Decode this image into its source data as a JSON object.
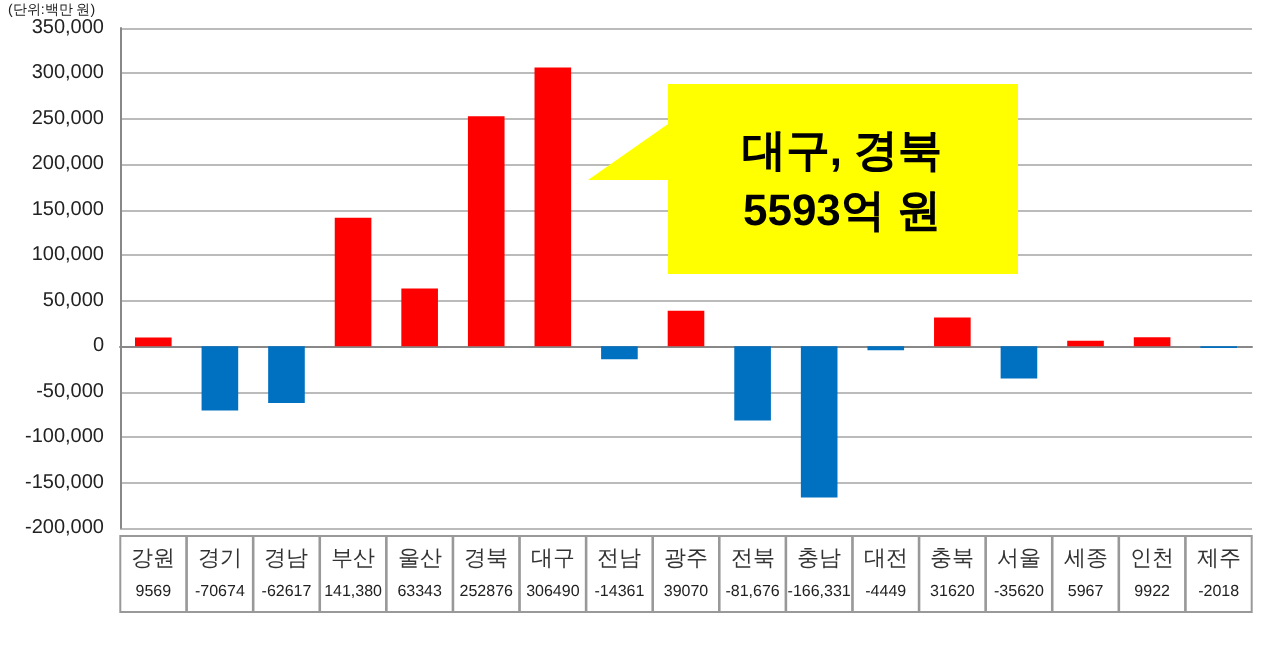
{
  "chart_data": {
    "type": "bar",
    "ylabel": "(단위:백만 원)",
    "categories": [
      "강원",
      "경기",
      "경남",
      "부산",
      "울산",
      "경북",
      "대구",
      "전남",
      "광주",
      "전북",
      "충남",
      "대전",
      "충북",
      "서울",
      "세종",
      "인천",
      "제주"
    ],
    "values": [
      9569,
      -70674,
      -62617,
      141380,
      63343,
      252876,
      306490,
      -14361,
      39070,
      -81676,
      -166331,
      -4449,
      31620,
      -35620,
      5967,
      9922,
      -2018
    ],
    "value_labels": [
      "9569",
      "-70674",
      "-62617",
      "141,380",
      "63343",
      "252876",
      "306490",
      "-14361",
      "39070",
      "-81,676",
      "-166,331",
      "-4449",
      "31620",
      "-35620",
      "5967",
      "9922",
      "-2018"
    ],
    "colors": [
      "#ff0000",
      "#0070c0",
      "#0070c0",
      "#ff0000",
      "#ff0000",
      "#ff0000",
      "#ff0000",
      "#0070c0",
      "#ff0000",
      "#0070c0",
      "#0070c0",
      "#0070c0",
      "#ff0000",
      "#0070c0",
      "#ff0000",
      "#ff0000",
      "#0070c0"
    ],
    "ylim": [
      -200000,
      350000
    ],
    "yticks": [
      {
        "value": -200000,
        "label": "-200,000"
      },
      {
        "value": -150000,
        "label": "-150,000"
      },
      {
        "value": -100000,
        "label": "-100,000"
      },
      {
        "value": -50000,
        "label": "-50,000"
      },
      {
        "value": 0,
        "label": "0"
      },
      {
        "value": 50000,
        "label": "50,000"
      },
      {
        "value": 100000,
        "label": "100,000"
      },
      {
        "value": 150000,
        "label": "150,000"
      },
      {
        "value": 200000,
        "label": "200,000"
      },
      {
        "value": 250000,
        "label": "250,000"
      },
      {
        "value": 300000,
        "label": "300,000"
      },
      {
        "value": 350000,
        "label": "350,000"
      }
    ],
    "annotations": [
      "대구, 경북\n5593억 원"
    ],
    "grid": "y"
  }
}
